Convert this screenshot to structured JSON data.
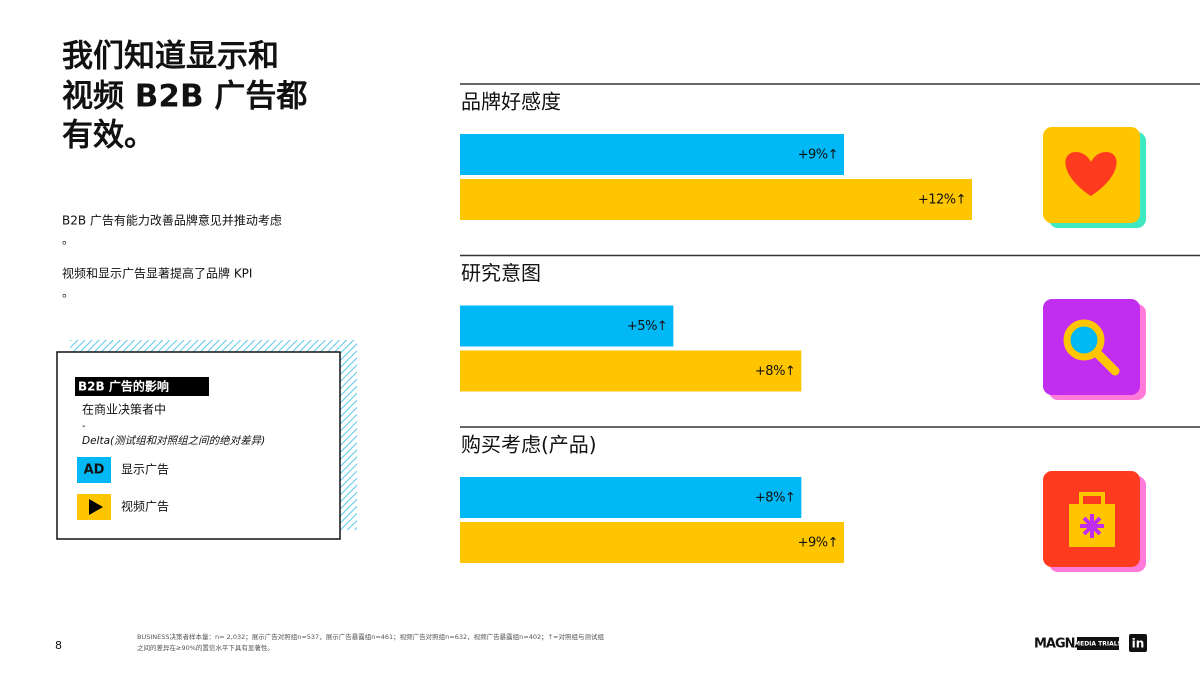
{
  "title_lines": [
    "我们知道显示和",
    "视频 B2B 广告都",
    "有效。"
  ],
  "bullets": [
    [
      "B2B 广告有能力改善品牌意见并推动考虑",
      "。"
    ],
    [
      "视频和显示广告显著提高了品牌 KPI",
      "。"
    ]
  ],
  "legend": {
    "title": "B2B 广告的影响",
    "subtitle": "在商业决策者中",
    "dash": "-",
    "note": "Delta(测试组和对照组之间的绝对差异)",
    "items": [
      {
        "icon": "AD",
        "label": "显示广告",
        "color": "#00b8f5"
      },
      {
        "label": "视频广告",
        "color": "#ffc600"
      }
    ]
  },
  "chart_data": [
    {
      "type": "bar",
      "title": "品牌好感度",
      "values": [
        9,
        12
      ],
      "value_labels": [
        "+9%↑",
        "+12%↑"
      ],
      "colors": [
        "#00b8f5",
        "#ffc600"
      ]
    },
    {
      "type": "bar",
      "title": "研究意图",
      "values": [
        5,
        8
      ],
      "value_labels": [
        "+5%↑",
        "+8%↑"
      ],
      "colors": [
        "#00b8f5",
        "#ffc600"
      ]
    },
    {
      "type": "bar",
      "title": "购买考虑(产品)",
      "values": [
        8,
        9
      ],
      "value_labels": [
        "+8%↑",
        "+9%↑"
      ],
      "colors": [
        "#00b8f5",
        "#ffc600"
      ]
    }
  ],
  "footer": {
    "page": "8",
    "note_lines": [
      "BUSINESS决策者样本量：n= 2,032；展示广告对照组n=537，展示广告暴露组n=461；视频广告对照组n=632，视频广告暴露组n=402；↑=对照组与测试组",
      "之间的差异在≥90%的置信水平下具有显著性。"
    ],
    "logo": "MAGNA",
    "logo_tag": "MEDIA TRIALS",
    "linkedin": "in"
  }
}
